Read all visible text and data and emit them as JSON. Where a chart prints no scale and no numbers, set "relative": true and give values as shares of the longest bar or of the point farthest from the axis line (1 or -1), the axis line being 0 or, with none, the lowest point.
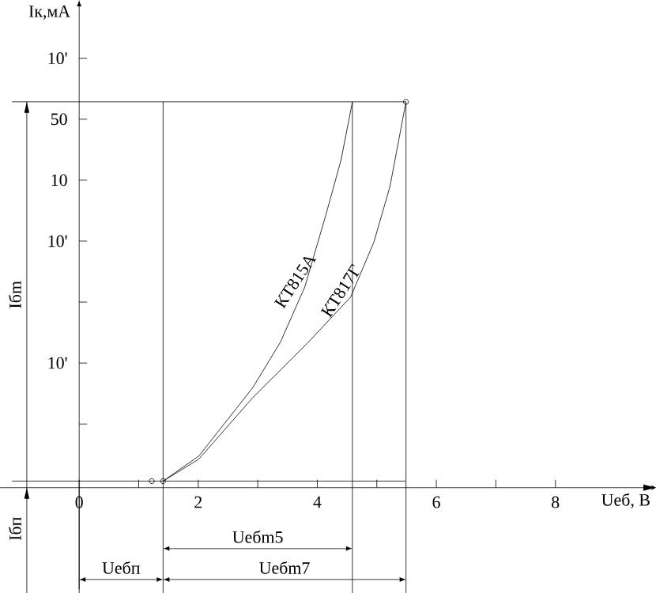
{
  "chart_data": {
    "type": "line",
    "xlabel": "Uеб, В",
    "ylabel": "Iк,мА",
    "relative": true,
    "xlim": [
      -1.33,
      9.69
    ],
    "xticks": [
      0,
      {
        "value": 1,
        "label": null
      },
      2,
      {
        "value": 3,
        "label": null
      },
      4,
      {
        "value": 5,
        "label": null
      },
      6,
      {
        "value": 7,
        "label": null
      },
      8
    ],
    "series": [
      {
        "name": "КТ815А",
        "color": "#000000",
        "x": [
          1.41,
          2.01,
          2.92,
          3.38,
          3.79,
          4.15,
          4.4,
          4.59
        ],
        "values": [
          0.017,
          0.082,
          0.26,
          0.377,
          0.52,
          0.71,
          0.85,
          1.0
        ]
      },
      {
        "name": "КТ817Г",
        "color": "#000000",
        "x": [
          1.41,
          2.01,
          2.92,
          3.85,
          4.56,
          4.95,
          5.22,
          5.38,
          5.49
        ],
        "values": [
          0.017,
          0.074,
          0.234,
          0.377,
          0.494,
          0.636,
          0.78,
          0.91,
          1.0
        ]
      },
      {
        "type": "line",
        "color": "#000000",
        "x": [
          -1.13,
          5.49
        ],
        "values": [
          1.0,
          1.0
        ]
      },
      {
        "type": "line",
        "color": "#000000",
        "x": [
          -1.13,
          5.49
        ],
        "values": [
          0.017,
          0.017
        ]
      },
      {
        "type": "scatter",
        "marker": "circle",
        "color": "#000000",
        "x": [
          1.22,
          1.41,
          5.49
        ],
        "values": [
          0.017,
          0.017,
          1.0
        ]
      }
    ],
    "ref_lines": [
      {
        "axis": "x",
        "value": 4.59
      },
      {
        "axis": "x",
        "value": 5.49
      },
      {
        "axis": "x",
        "value": 1.41
      },
      {
        "axis": "x",
        "value": -0.88
      }
    ],
    "annotations": [
      "10'",
      "50",
      "10",
      "10'",
      "10'",
      "Uебm5",
      "Uебп",
      "Uебm7",
      "Iбm",
      "Iбп"
    ]
  }
}
